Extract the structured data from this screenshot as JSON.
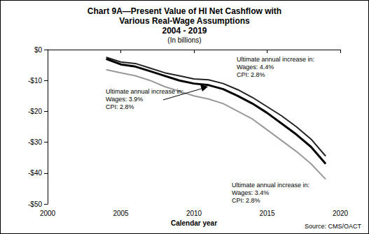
{
  "chart_data": {
    "type": "line",
    "title": "Chart 9A—Present Value of HI Net Cashflow with\nVarious Real-Wage Assumptions\n2004 - 2019",
    "subtitle": "(In billions)",
    "x_label": "Calendar year",
    "source": "Source: CMS/OACT",
    "x": [
      2004,
      2005,
      2006,
      2007,
      2008,
      2009,
      2010,
      2011,
      2012,
      2013,
      2014,
      2015,
      2016,
      2017,
      2018,
      2019
    ],
    "series": [
      {
        "color": "#222222",
        "values": [
          -2.5,
          -4,
          -4.5,
          -6,
          -7.5,
          -8.5,
          -9.5,
          -9.8,
          -11,
          -13,
          -15.5,
          -18.5,
          -21.5,
          -25,
          -29,
          -34.5
        ]
      },
      {
        "color": "#000000",
        "values": [
          -3,
          -4.8,
          -5.5,
          -7,
          -8.5,
          -10,
          -11,
          -11.5,
          -12.8,
          -15,
          -17.5,
          -20.5,
          -24,
          -27.5,
          -31.5,
          -37
        ]
      },
      {
        "color": "#999999",
        "values": [
          -6.5,
          -7.5,
          -8.5,
          -10,
          -12,
          -13.5,
          -15,
          -16,
          -17.5,
          -20,
          -22.5,
          -26,
          -29.5,
          -33,
          -37,
          -42
        ]
      }
    ],
    "annotations": [
      [
        "Ultimate annual increase in:",
        "Wages: 4.4%",
        "CPI: 2.8%"
      ],
      [
        "Ultimate annual increase in:",
        "Wages: 3.9%",
        "CPI: 2.8%"
      ],
      [
        "Ultimate annual increase in:",
        "Wages: 3.4%",
        "CPI: 2.8%"
      ]
    ],
    "xlim": [
      2000,
      2020
    ],
    "xticks": [
      2000,
      2005,
      2010,
      2015,
      2020
    ],
    "ylim": [
      -50,
      0
    ],
    "yticks": [
      {
        "value": -50,
        "label": "-$50"
      },
      {
        "value": -40,
        "label": "-$40"
      },
      {
        "value": -30,
        "label": "-$30"
      },
      {
        "value": -20,
        "label": "-$20"
      },
      {
        "value": -10,
        "label": "-$10"
      },
      {
        "value": 0,
        "label": "$0"
      }
    ],
    "grid": false
  }
}
